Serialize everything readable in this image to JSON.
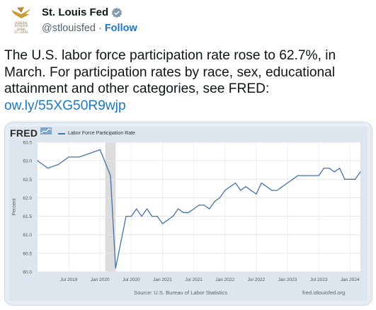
{
  "account": {
    "name": "St. Louis Fed",
    "handle": "@stlouisfed",
    "separator": "·",
    "follow_label": "Follow",
    "avatar_text": "FEDERAL\nRESERVE\nBANK\nST. LOUIS",
    "verified_icon": "verified-badge-icon"
  },
  "tweet": {
    "text": "The U.S. labor force participation rate rose to 62.7%, in March. For participation rates by race, sex, educational attainment and other categories, see FRED:",
    "link": "ow.ly/55XG50R9wjp"
  },
  "fred_card": {
    "logo_text": "FRED",
    "source_text": "Source: U.S. Bureau of Labor Statistics",
    "site_text": "fred.stlouisfed.org"
  },
  "chart_data": {
    "type": "line",
    "series": [
      {
        "name": "Labor Force Participation Rate",
        "color": "#4572a7",
        "x": [
          "2019-01",
          "2019-03",
          "2019-05",
          "2019-07",
          "2019-09",
          "2019-11",
          "2020-01",
          "2020-03",
          "2020-04",
          "2020-06",
          "2020-07",
          "2020-08",
          "2020-09",
          "2020-10",
          "2020-11",
          "2020-12",
          "2021-01",
          "2021-02",
          "2021-03",
          "2021-04",
          "2021-05",
          "2021-06",
          "2021-07",
          "2021-08",
          "2021-09",
          "2021-10",
          "2021-11",
          "2021-12",
          "2022-01",
          "2022-02",
          "2022-03",
          "2022-04",
          "2022-05",
          "2022-06",
          "2022-07",
          "2022-08",
          "2022-09",
          "2022-10",
          "2022-11",
          "2022-12",
          "2023-01",
          "2023-02",
          "2023-03",
          "2023-04",
          "2023-05",
          "2023-06",
          "2023-07",
          "2023-08",
          "2023-09",
          "2023-10",
          "2023-11",
          "2023-12",
          "2024-01",
          "2024-02",
          "2024-03"
        ],
        "values": [
          63.0,
          62.8,
          62.9,
          63.1,
          63.1,
          63.2,
          63.3,
          62.6,
          60.1,
          61.5,
          61.5,
          61.7,
          61.5,
          61.7,
          61.5,
          61.5,
          61.3,
          61.4,
          61.5,
          61.7,
          61.6,
          61.6,
          61.7,
          61.8,
          61.8,
          61.7,
          61.9,
          62.0,
          62.2,
          62.3,
          62.4,
          62.2,
          62.3,
          62.2,
          62.1,
          62.4,
          62.3,
          62.2,
          62.2,
          62.3,
          62.4,
          62.5,
          62.6,
          62.6,
          62.6,
          62.6,
          62.6,
          62.8,
          62.8,
          62.7,
          62.8,
          62.5,
          62.5,
          62.5,
          62.7
        ]
      }
    ],
    "recession_shading": {
      "start": "2020-02",
      "end": "2020-04"
    },
    "ylabel": "Percent",
    "ylim": [
      60.0,
      63.5
    ],
    "y_ticks": [
      "60.0",
      "60.5",
      "61.0",
      "61.5",
      "62.0",
      "62.5",
      "63.0",
      "63.5"
    ],
    "x_ticks": [
      {
        "label": "Jul 2019",
        "x": "2019-07"
      },
      {
        "label": "Jan 2020",
        "x": "2020-01"
      },
      {
        "label": "Jul 2020",
        "x": "2020-07"
      },
      {
        "label": "Jan 2021",
        "x": "2021-01"
      },
      {
        "label": "Jul 2021",
        "x": "2021-07"
      },
      {
        "label": "Jan 2022",
        "x": "2022-01"
      },
      {
        "label": "Jul 2022",
        "x": "2022-07"
      },
      {
        "label": "Jan 2023",
        "x": "2023-01"
      },
      {
        "label": "Jul 2023",
        "x": "2023-07"
      },
      {
        "label": "Jan 2024",
        "x": "2024-01"
      }
    ],
    "grid": true,
    "legend": "top-left"
  }
}
